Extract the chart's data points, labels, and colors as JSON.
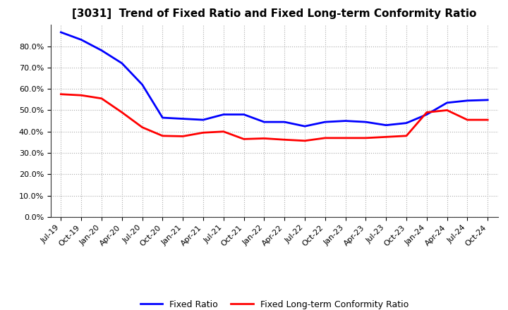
{
  "title": "[3031]  Trend of Fixed Ratio and Fixed Long-term Conformity Ratio",
  "x_labels": [
    "Jul-19",
    "Oct-19",
    "Jan-20",
    "Apr-20",
    "Jul-20",
    "Oct-20",
    "Jan-21",
    "Apr-21",
    "Jul-21",
    "Oct-21",
    "Jan-22",
    "Apr-22",
    "Jul-22",
    "Oct-22",
    "Jan-23",
    "Apr-23",
    "Jul-23",
    "Oct-23",
    "Jan-24",
    "Apr-24",
    "Jul-24",
    "Oct-24"
  ],
  "fixed_ratio": [
    0.865,
    0.83,
    0.78,
    0.72,
    0.62,
    0.465,
    0.46,
    0.455,
    0.48,
    0.48,
    0.445,
    0.445,
    0.425,
    0.445,
    0.45,
    0.445,
    0.43,
    0.44,
    0.48,
    0.535,
    0.545,
    0.548
  ],
  "fixed_lt_ratio": [
    0.575,
    0.57,
    0.555,
    0.49,
    0.42,
    0.38,
    0.378,
    0.395,
    0.4,
    0.365,
    0.368,
    0.362,
    0.357,
    0.37,
    0.37,
    0.37,
    0.375,
    0.38,
    0.49,
    0.5,
    0.455,
    0.455
  ],
  "fixed_ratio_color": "#0000FF",
  "fixed_lt_ratio_color": "#FF0000",
  "background_color": "#FFFFFF",
  "grid_color": "#AAAAAA",
  "ylim": [
    0.0,
    0.9
  ],
  "yticks": [
    0.0,
    0.1,
    0.2,
    0.3,
    0.4,
    0.5,
    0.6,
    0.7,
    0.8
  ],
  "legend_fixed_ratio": "Fixed Ratio",
  "legend_fixed_lt_ratio": "Fixed Long-term Conformity Ratio",
  "title_fontsize": 11,
  "tick_fontsize": 8,
  "legend_fontsize": 9
}
